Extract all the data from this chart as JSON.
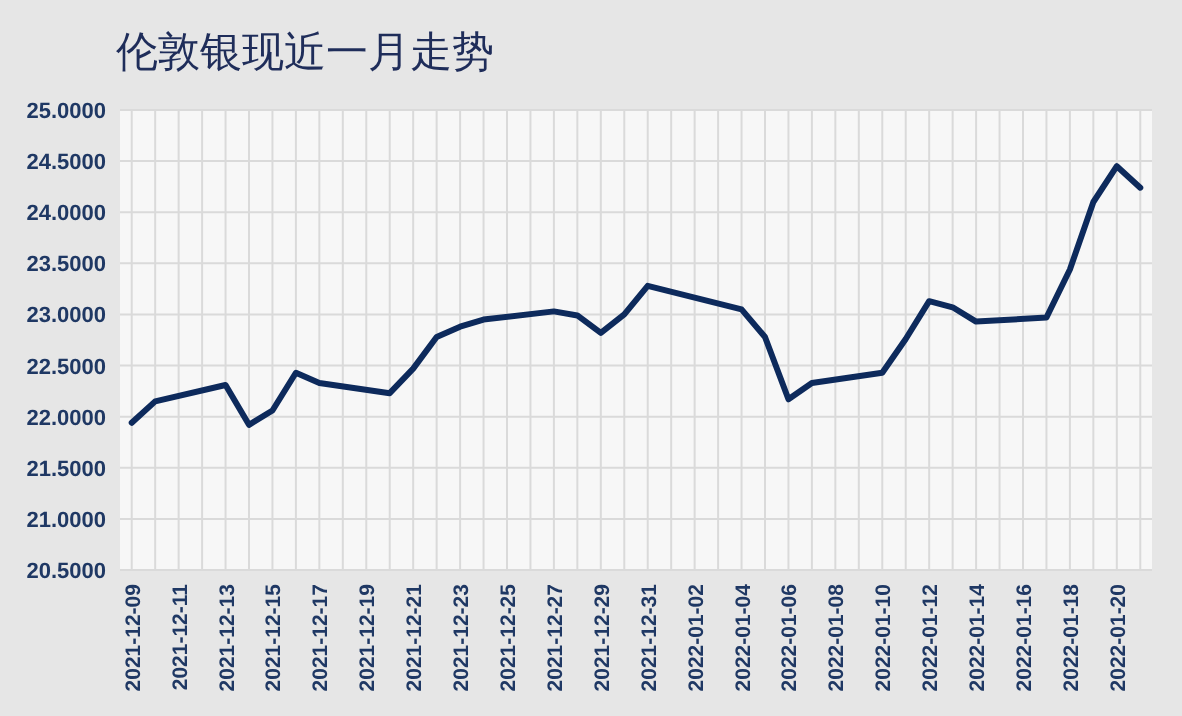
{
  "chart_data": {
    "type": "line",
    "title": "伦敦银现近一月走势",
    "x": [
      "2021-12-09",
      "2021-12-10",
      "2021-12-13",
      "2021-12-14",
      "2021-12-15",
      "2021-12-16",
      "2021-12-17",
      "2021-12-20",
      "2021-12-21",
      "2021-12-22",
      "2021-12-23",
      "2021-12-24",
      "2021-12-27",
      "2021-12-28",
      "2021-12-29",
      "2021-12-30",
      "2021-12-31",
      "2022-01-04",
      "2022-01-05",
      "2022-01-06",
      "2022-01-07",
      "2022-01-10",
      "2022-01-11",
      "2022-01-12",
      "2022-01-13",
      "2022-01-14",
      "2022-01-17",
      "2022-01-18",
      "2022-01-19",
      "2022-01-20",
      "2022-01-21"
    ],
    "series": [
      {
        "color": "#0d2a5c",
        "values": [
          21.94,
          22.15,
          22.31,
          21.92,
          22.06,
          22.43,
          22.33,
          22.23,
          22.47,
          22.78,
          22.88,
          22.95,
          23.03,
          22.99,
          22.82,
          23.0,
          23.28,
          23.05,
          22.78,
          22.17,
          22.33,
          22.43,
          22.76,
          23.13,
          23.07,
          22.93,
          22.97,
          23.44,
          24.1,
          24.45,
          24.24
        ]
      }
    ],
    "xlim": [
      "2021-12-08T12:00",
      "2022-01-21T12:00"
    ],
    "xticks": [
      "2021-12-09",
      "2021-12-11",
      "2021-12-13",
      "2021-12-15",
      "2021-12-17",
      "2021-12-19",
      "2021-12-21",
      "2021-12-23",
      "2021-12-25",
      "2021-12-27",
      "2021-12-29",
      "2021-12-31",
      "2022-01-02",
      "2022-01-04",
      "2022-01-06",
      "2022-01-08",
      "2022-01-10",
      "2022-01-12",
      "2022-01-14",
      "2022-01-16",
      "2022-01-18",
      "2022-01-20"
    ],
    "ylim": [
      20.5,
      25
    ],
    "yticks": [
      {
        "value": 20.5,
        "label": "20.5000"
      },
      {
        "value": 21,
        "label": "21.0000"
      },
      {
        "value": 21.5,
        "label": "21.5000"
      },
      {
        "value": 22,
        "label": "22.0000"
      },
      {
        "value": 22.5,
        "label": "22.5000"
      },
      {
        "value": 23,
        "label": "23.0000"
      },
      {
        "value": 23.5,
        "label": "23.5000"
      },
      {
        "value": 24,
        "label": "24.0000"
      },
      {
        "value": 24.5,
        "label": "24.5000"
      },
      {
        "value": 25,
        "label": "25.0000"
      }
    ],
    "grid": true,
    "marker": "none",
    "line_style": "solid"
  }
}
